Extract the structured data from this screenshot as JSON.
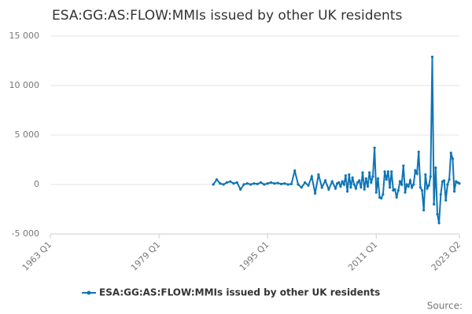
{
  "chart_data": {
    "type": "line",
    "title": "ESA:GG:AS:FLOW:MMIs issued by other UK residents",
    "source": "Source:",
    "xlim": [
      1963.0,
      2023.25
    ],
    "xticks": [
      {
        "value": 1963.0,
        "label": "1963 Q1"
      },
      {
        "value": 1979.0,
        "label": "1979 Q1"
      },
      {
        "value": 1995.0,
        "label": "1995 Q1"
      },
      {
        "value": 2011.0,
        "label": "2011 Q1"
      },
      {
        "value": 2023.25,
        "label": "2023 Q2"
      }
    ],
    "ylim": [
      -5000,
      15000
    ],
    "yticks": [
      {
        "value": -5000,
        "label": "-5 000"
      },
      0,
      {
        "value": 5000,
        "label": "5 000"
      },
      {
        "value": 10000,
        "label": "10 000"
      },
      {
        "value": 15000,
        "label": "15 000"
      }
    ],
    "grid": true,
    "legend": "bottom",
    "series": [
      {
        "name": "ESA:GG:AS:FLOW:MMIs issued by other UK residents",
        "color": "#0f75b5",
        "x": [
          1987.0,
          1987.5,
          1988.0,
          1988.5,
          1989.0,
          1989.5,
          1990.0,
          1990.5,
          1991.0,
          1991.5,
          1992.0,
          1992.5,
          1993.0,
          1993.5,
          1994.0,
          1994.5,
          1995.0,
          1995.5,
          1996.0,
          1996.5,
          1997.0,
          1997.5,
          1998.0,
          1998.5,
          1999.0,
          1999.5,
          2000.0,
          2000.5,
          2001.0,
          2001.5,
          2002.0,
          2002.5,
          2003.0,
          2003.5,
          2004.0,
          2004.5,
          2005.0,
          2005.25,
          2005.5,
          2005.75,
          2006.0,
          2006.25,
          2006.5,
          2006.75,
          2007.0,
          2007.25,
          2007.5,
          2007.75,
          2008.0,
          2008.25,
          2008.5,
          2008.75,
          2009.0,
          2009.25,
          2009.5,
          2009.75,
          2010.0,
          2010.25,
          2010.5,
          2010.75,
          2011.0,
          2011.25,
          2011.5,
          2011.75,
          2012.0,
          2012.25,
          2012.5,
          2012.75,
          2013.0,
          2013.25,
          2013.5,
          2013.75,
          2014.0,
          2014.25,
          2014.5,
          2014.75,
          2015.0,
          2015.25,
          2015.5,
          2015.75,
          2016.0,
          2016.25,
          2016.5,
          2016.75,
          2017.0,
          2017.25,
          2017.5,
          2017.75,
          2018.0,
          2018.25,
          2018.5,
          2018.75,
          2019.0,
          2019.25,
          2019.5,
          2019.75,
          2020.0,
          2020.25,
          2020.5,
          2020.75,
          2021.0,
          2021.25,
          2021.5,
          2021.75,
          2022.0,
          2022.25,
          2022.5,
          2022.75,
          2023.0,
          2023.25
        ],
        "values": [
          0,
          500,
          100,
          0,
          200,
          300,
          100,
          200,
          -500,
          0,
          100,
          0,
          100,
          50,
          200,
          0,
          100,
          200,
          100,
          150,
          50,
          100,
          0,
          50,
          1400,
          0,
          -300,
          200,
          -100,
          800,
          -900,
          1000,
          -300,
          400,
          -500,
          300,
          -400,
          100,
          200,
          -200,
          300,
          0,
          900,
          -700,
          1000,
          -300,
          700,
          0,
          -400,
          200,
          400,
          -300,
          1200,
          -500,
          600,
          -200,
          1200,
          200,
          800,
          3700,
          -800,
          600,
          -1300,
          -1400,
          -1000,
          1300,
          500,
          1300,
          -300,
          1300,
          -600,
          -500,
          -1300,
          -600,
          300,
          0,
          1900,
          -800,
          0,
          -200,
          400,
          -300,
          0,
          1400,
          1100,
          3300,
          -300,
          -600,
          -2600,
          1000,
          -400,
          -100,
          800,
          12900,
          -2000,
          1700,
          -3000,
          -3900,
          -1000,
          300,
          400,
          -1600,
          0,
          500,
          3200,
          2600,
          -700,
          300,
          200,
          100
        ]
      }
    ]
  }
}
